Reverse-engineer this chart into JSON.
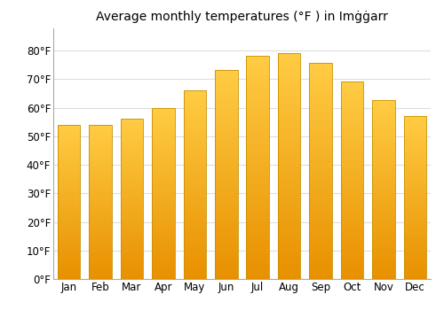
{
  "title": "Average monthly temperatures (°F ) in Imġġarr",
  "months": [
    "Jan",
    "Feb",
    "Mar",
    "Apr",
    "May",
    "Jun",
    "Jul",
    "Aug",
    "Sep",
    "Oct",
    "Nov",
    "Dec"
  ],
  "temperatures": [
    54.0,
    54.0,
    56.3,
    59.9,
    66.2,
    73.2,
    78.1,
    79.2,
    75.7,
    69.1,
    62.6,
    57.0
  ],
  "bar_color_top": "#FFCC44",
  "bar_color_bottom": "#E89000",
  "bar_edge_color": "#C89000",
  "ylim": [
    0,
    88
  ],
  "yticks": [
    0,
    10,
    20,
    30,
    40,
    50,
    60,
    70,
    80
  ],
  "ytick_labels": [
    "0°F",
    "10°F",
    "20°F",
    "30°F",
    "40°F",
    "50°F",
    "60°F",
    "70°F",
    "80°F"
  ],
  "background_color": "#ffffff",
  "plot_bg_color": "#ffffff",
  "grid_color": "#dddddd",
  "title_fontsize": 10,
  "tick_fontsize": 8.5
}
